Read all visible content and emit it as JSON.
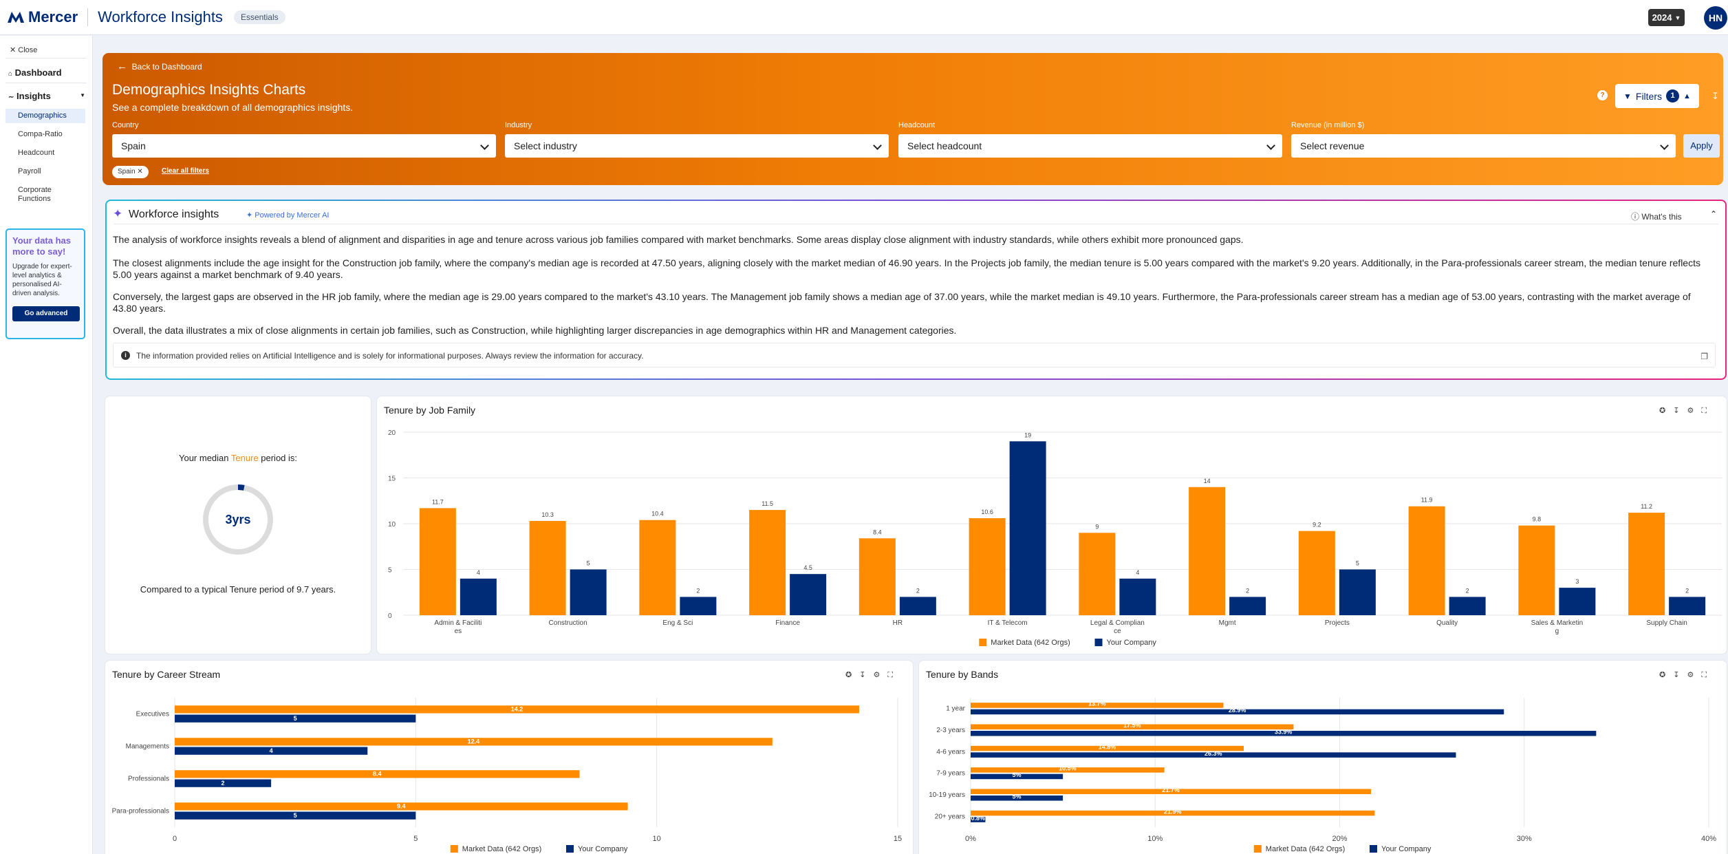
{
  "topbar": {
    "brand": "Mercer",
    "app_title": "Workforce Insights",
    "plan_badge": "Essentials",
    "year": "2024",
    "user_initials": "HN"
  },
  "sidebar": {
    "close_label": "Close",
    "dashboard_label": "Dashboard",
    "insights_label": "Insights",
    "items": [
      {
        "label": "Demographics",
        "active": true
      },
      {
        "label": "Compa-Ratio"
      },
      {
        "label": "Headcount"
      },
      {
        "label": "Payroll"
      },
      {
        "label": "Corporate Functions"
      }
    ],
    "promo": {
      "title": "Your data has more to say!",
      "text": "Upgrade for expert-level analytics & personalised AI-driven analysis.",
      "button": "Go advanced"
    }
  },
  "hero": {
    "back_label": "Back to Dashboard",
    "title": "Demographics Insights Charts",
    "subtitle": "See a complete breakdown of all demographics insights.",
    "filters_label": "Filters",
    "filters_count": "1",
    "filters": [
      {
        "label": "Country",
        "value": "Spain"
      },
      {
        "label": "Industry",
        "value": "Select industry"
      },
      {
        "label": "Headcount",
        "value": "Select headcount"
      },
      {
        "label": "Revenue (in million $)",
        "value": "Select revenue"
      }
    ],
    "apply_label": "Apply",
    "chip": "Spain",
    "clear_label": "Clear all filters"
  },
  "insights": {
    "title": "Workforce insights",
    "powered": "Powered by Mercer AI",
    "whats_this": "What's this",
    "paragraphs": [
      "The analysis of workforce insights reveals a blend of alignment and disparities in age and tenure across various job families compared with market benchmarks. Some areas display close alignment with industry standards, while others exhibit more pronounced gaps.",
      "The closest alignments include the age insight for the Construction job family, where the company's median age is recorded at 47.50 years, aligning closely with the market median of 46.90 years. In the Projects job family, the median tenure is 5.00 years compared with the market's 9.20 years. Additionally, in the Para-professionals career stream, the median tenure reflects 5.00 years against a market benchmark of 9.40 years.",
      "Conversely, the largest gaps are observed in the HR job family, where the median age is 29.00 years compared to the market's 43.10 years. The Management job family shows a median age of 37.00 years, while the market median is 49.10 years. Furthermore, the Para-professionals career stream has a median age of 53.00 years, contrasting with the market average of 43.80 years.",
      "Overall, the data illustrates a mix of close alignments in certain job families, such as Construction, while highlighting larger discrepancies in age demographics within HR and Management categories."
    ],
    "disclaimer": "The information provided relies on Artificial Intelligence and is solely for informational purposes. Always review the information for accuracy."
  },
  "median": {
    "label_prefix": "Your median",
    "label_highlight": "Tenure",
    "label_suffix": "period is:",
    "value": "3yrs",
    "fraction": 0.03,
    "compare": "Compared to a typical Tenure period of 9.7 years."
  },
  "colors": {
    "market": "#ff8c00",
    "company": "#002c77"
  },
  "chart_data": [
    {
      "type": "bar",
      "title": "Tenure by Job Family",
      "categories": [
        "Admin & Facilities",
        "Construction",
        "Eng & Sci",
        "Finance",
        "HR",
        "IT & Telecom",
        "Legal & Compliance",
        "Mgmt",
        "Projects",
        "Quality",
        "Sales & Marketing",
        "Supply Chain"
      ],
      "series": [
        {
          "name": "Market Data (642 Orgs)",
          "values": [
            11.7,
            10.3,
            10.4,
            11.5,
            8.4,
            10.6,
            9,
            14,
            9.2,
            11.9,
            9.8,
            11.2
          ]
        },
        {
          "name": "Your Company",
          "values": [
            4,
            5,
            2,
            4.5,
            2,
            19,
            4,
            2,
            5,
            2,
            3,
            2
          ]
        }
      ],
      "ylim": [
        0,
        20
      ],
      "yticks": [
        0,
        5,
        10,
        15,
        20
      ],
      "legend": "bottom"
    },
    {
      "type": "bar",
      "orientation": "horizontal",
      "title": "Tenure by Career Stream",
      "categories": [
        "Executives",
        "Managements",
        "Professionals",
        "Para-professionals"
      ],
      "series": [
        {
          "name": "Market Data (642 Orgs)",
          "values": [
            14.2,
            12.4,
            8.4,
            9.4
          ]
        },
        {
          "name": "Your Company",
          "values": [
            5,
            4,
            2,
            5
          ]
        }
      ],
      "xlim": [
        0,
        15
      ],
      "xticks": [
        0,
        5,
        10,
        15
      ],
      "legend": "bottom"
    },
    {
      "type": "bar",
      "orientation": "horizontal",
      "title": "Tenure by Bands",
      "categories": [
        "1 year",
        "2-3 years",
        "4-6 years",
        "7-9 years",
        "10-19 years",
        "20+ years"
      ],
      "series": [
        {
          "name": "Market Data (642 Orgs)",
          "values": [
            13.7,
            17.5,
            14.8,
            10.5,
            21.7,
            21.9
          ],
          "labels": [
            "13.7%",
            "17.5%",
            "14.8%",
            "10.5%",
            "21.7%",
            "21.9%"
          ]
        },
        {
          "name": "Your Company",
          "values": [
            28.9,
            33.9,
            26.3,
            5,
            5,
            0.8
          ],
          "labels": [
            "28.9%",
            "33.9%",
            "26.3%",
            "5%",
            "5%",
            "0.8%"
          ]
        }
      ],
      "xlim": [
        0,
        40
      ],
      "xticks": [
        "0%",
        "10%",
        "20%",
        "30%",
        "40%"
      ],
      "legend": "bottom"
    }
  ]
}
